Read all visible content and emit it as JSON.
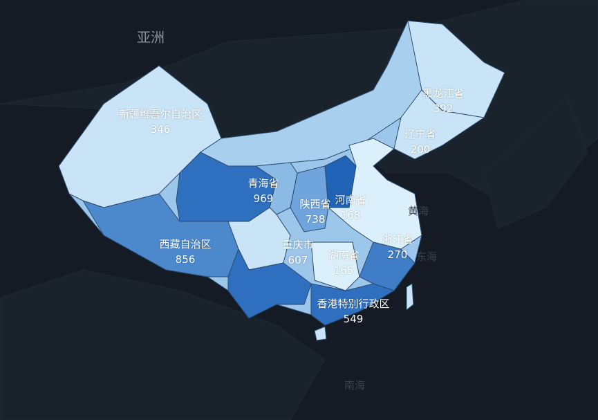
{
  "map_labels": {
    "continent": "亚洲",
    "seas": [
      "黄海",
      "东海",
      "南海"
    ]
  },
  "regions": [
    {
      "name": "新疆维吾尔自治区",
      "value": "346"
    },
    {
      "name": "黑龙江省",
      "value": "392"
    },
    {
      "name": "辽宁省",
      "value": "200"
    },
    {
      "name": "青海省",
      "value": "969"
    },
    {
      "name": "陕西省",
      "value": "738"
    },
    {
      "name": "河南省",
      "value": "168"
    },
    {
      "name": "西藏自治区",
      "value": "856"
    },
    {
      "name": "重庆市",
      "value": "607"
    },
    {
      "name": "湖南省",
      "value": "165"
    },
    {
      "name": "浙江省",
      "value": "270"
    },
    {
      "name": "香港特别行政区",
      "value": "549"
    }
  ],
  "colors": {
    "background": "#141b24",
    "low": "#c9e4f6",
    "mid": "#8bbbe4",
    "high": "#2e6fc0",
    "border": "#2b4a6e"
  }
}
